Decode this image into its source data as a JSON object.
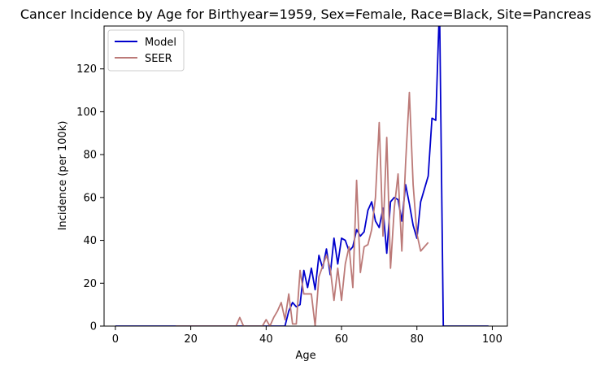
{
  "chart_data": {
    "type": "line",
    "title": "Cancer Incidence by Age for Birthyear=1959, Sex=Female, Race=Black, Site=Pancreas",
    "xlabel": "Age",
    "ylabel": "Incidence (per 100k)",
    "xlim": [
      -3,
      104
    ],
    "ylim": [
      0,
      140
    ],
    "xticks": [
      0,
      20,
      40,
      60,
      80,
      100
    ],
    "yticks": [
      0,
      20,
      40,
      60,
      80,
      100,
      120
    ],
    "grid": false,
    "legend_position": "upper-left",
    "series": [
      {
        "name": "Model",
        "color": "#0000cc",
        "x": [
          0,
          5,
          10,
          15,
          20,
          25,
          30,
          35,
          40,
          41,
          42,
          43,
          44,
          45,
          46,
          47,
          48,
          49,
          50,
          51,
          52,
          53,
          54,
          55,
          56,
          57,
          58,
          59,
          60,
          61,
          62,
          63,
          64,
          65,
          66,
          67,
          68,
          69,
          70,
          71,
          72,
          73,
          74,
          75,
          76,
          77,
          78,
          79,
          80,
          81,
          82,
          83,
          84,
          85,
          86,
          87,
          88,
          90,
          95,
          99
        ],
        "y": [
          0,
          0,
          0,
          0,
          0,
          0,
          0,
          0,
          0,
          0,
          0,
          0,
          0,
          0,
          7,
          11,
          9,
          10,
          26,
          18,
          27,
          17,
          33,
          27,
          36,
          24,
          41,
          29,
          41,
          40,
          35,
          37,
          45,
          42,
          44,
          54,
          58,
          49,
          46,
          55,
          34,
          58,
          60,
          59,
          49,
          66,
          57,
          47,
          41,
          58,
          64,
          70,
          97,
          96,
          150,
          0,
          0,
          0,
          0,
          0
        ]
      },
      {
        "name": "SEER",
        "color": "#bc7a78",
        "x": [
          16,
          20,
          25,
          30,
          31,
          32,
          33,
          34,
          35,
          36,
          37,
          38,
          39,
          40,
          41,
          42,
          43,
          44,
          45,
          46,
          47,
          48,
          49,
          50,
          51,
          52,
          53,
          54,
          55,
          56,
          57,
          58,
          59,
          60,
          61,
          62,
          63,
          64,
          65,
          66,
          67,
          68,
          69,
          70,
          71,
          72,
          73,
          74,
          75,
          76,
          77,
          78,
          79,
          80,
          81,
          82,
          83
        ],
        "y": [
          0,
          0,
          0,
          0,
          0,
          0,
          4,
          0,
          0,
          0,
          0,
          0,
          0,
          3,
          0,
          4,
          7,
          11,
          3,
          15,
          1,
          1,
          26,
          15,
          15,
          15,
          0,
          23,
          28,
          33,
          27,
          12,
          27,
          12,
          29,
          37,
          18,
          68,
          25,
          37,
          38,
          45,
          60,
          95,
          42,
          88,
          27,
          55,
          71,
          35,
          76,
          109,
          66,
          43,
          35,
          37,
          39
        ]
      }
    ]
  }
}
